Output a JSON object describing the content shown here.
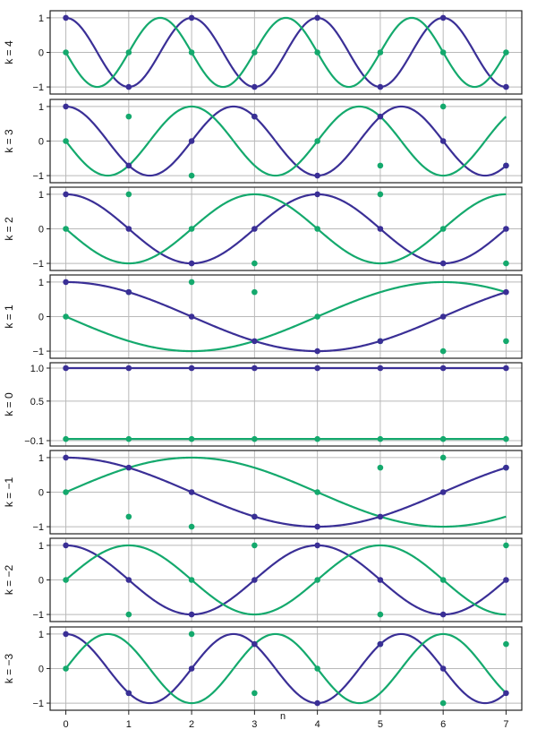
{
  "chart_data": {
    "type": "line",
    "xlabel": "n",
    "x_ticks": [
      0,
      1,
      2,
      3,
      4,
      5,
      6,
      7
    ],
    "xlim": [
      -0.25,
      7.25
    ],
    "series_colors": {
      "cos": "#3a2f96",
      "sin": "#14a96d"
    },
    "grid": true,
    "panels": [
      {
        "label": "k = 4",
        "k": 4,
        "ylim": [
          -1.05,
          1.05
        ],
        "yticks": [
          1,
          0,
          -1
        ],
        "ytick_labels": [
          "1",
          "0",
          "−1"
        ],
        "cos_points": [
          1,
          -1,
          1,
          -1,
          1,
          -1,
          1,
          -1
        ],
        "sin_points": [
          0,
          0,
          0,
          0,
          0,
          0,
          0,
          0
        ]
      },
      {
        "label": "k = 3",
        "k": 3,
        "ylim": [
          -1.05,
          1.05
        ],
        "yticks": [
          1,
          0,
          -1
        ],
        "ytick_labels": [
          "1",
          "0",
          "−1"
        ],
        "cos_points": [
          1,
          -0.71,
          0,
          0.71,
          -1,
          0.71,
          0,
          -0.71
        ],
        "sin_points": [
          0,
          0.71,
          -1,
          0.71,
          0,
          -0.71,
          1,
          -0.71
        ]
      },
      {
        "label": "k = 2",
        "k": 2,
        "ylim": [
          -1.05,
          1.05
        ],
        "yticks": [
          1,
          0,
          -1
        ],
        "ytick_labels": [
          "1",
          "0",
          "−1"
        ],
        "cos_points": [
          1,
          0,
          -1,
          0,
          1,
          0,
          -1,
          0
        ],
        "sin_points": [
          0,
          1,
          0,
          -1,
          0,
          1,
          0,
          -1
        ]
      },
      {
        "label": "k = 1",
        "k": 1,
        "ylim": [
          -1.05,
          1.05
        ],
        "yticks": [
          1,
          0,
          -1
        ],
        "ytick_labels": [
          "1",
          "0",
          "−1"
        ],
        "cos_points": [
          1,
          0.71,
          0,
          -0.71,
          -1,
          -0.71,
          0,
          0.71
        ],
        "sin_points": [
          0,
          0.71,
          1,
          0.71,
          0,
          -0.71,
          -1,
          -0.71
        ]
      },
      {
        "label": "k = 0",
        "k": 0,
        "ylim": [
          -0.1,
          1.0
        ],
        "yticks": [
          1.0,
          0.5,
          -0.1
        ],
        "ytick_labels": [
          "1.0",
          "0.5",
          "−0.1"
        ],
        "cos_points": [
          1,
          1,
          1,
          1,
          1,
          1,
          1,
          1
        ],
        "sin_points": [
          -0.075,
          -0.075,
          -0.075,
          -0.075,
          -0.075,
          -0.075,
          -0.075,
          -0.075
        ]
      },
      {
        "label": "k = −1",
        "k": -1,
        "ylim": [
          -1.05,
          1.05
        ],
        "yticks": [
          1,
          0,
          -1
        ],
        "ytick_labels": [
          "1",
          "0",
          "−1"
        ],
        "cos_points": [
          1,
          0.71,
          0,
          -0.71,
          -1,
          -0.71,
          0,
          0.71
        ],
        "sin_points": [
          0,
          -0.71,
          -1,
          -0.71,
          0,
          0.71,
          1,
          0.71
        ]
      },
      {
        "label": "k = −2",
        "k": -2,
        "ylim": [
          -1.05,
          1.05
        ],
        "yticks": [
          1,
          0,
          -1
        ],
        "ytick_labels": [
          "1",
          "0",
          "−1"
        ],
        "cos_points": [
          1,
          0,
          -1,
          0,
          1,
          0,
          -1,
          0
        ],
        "sin_points": [
          0,
          -1,
          0,
          1,
          0,
          -1,
          0,
          1
        ]
      },
      {
        "label": "k = −3",
        "k": -3,
        "ylim": [
          -1.05,
          1.05
        ],
        "yticks": [
          1,
          0,
          -1
        ],
        "ytick_labels": [
          "1",
          "0",
          "−1"
        ],
        "cos_points": [
          1,
          -0.71,
          0,
          0.71,
          -1,
          0.71,
          0,
          -0.71
        ],
        "sin_points": [
          0,
          -0.71,
          1,
          -0.71,
          0,
          0.71,
          -1,
          0.71
        ]
      }
    ]
  }
}
